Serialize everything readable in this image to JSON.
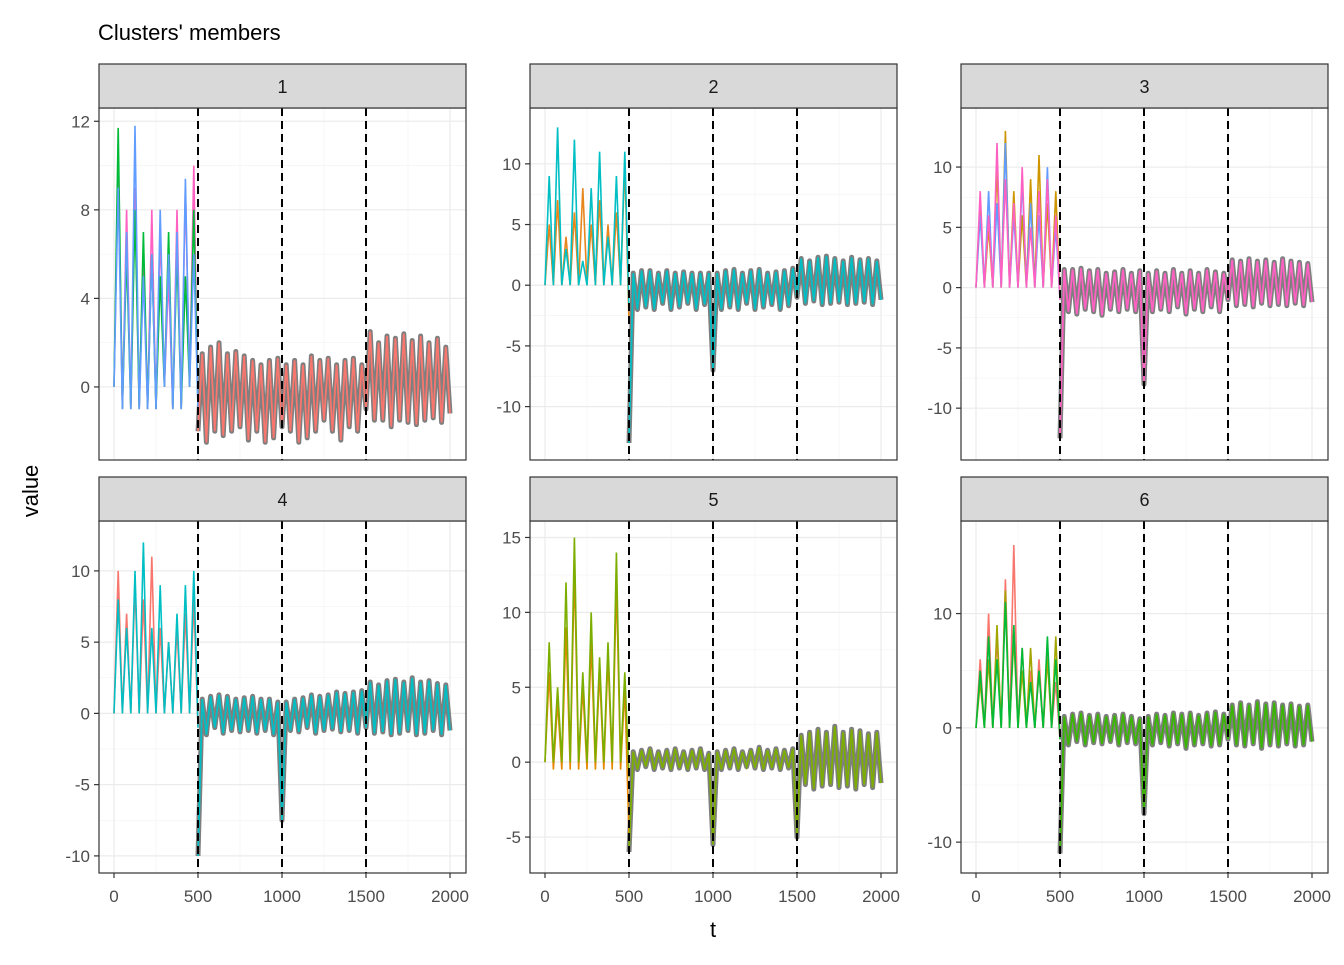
{
  "chart_data": {
    "type": "line",
    "title": "Clusters' members",
    "xlabel": "t",
    "ylabel": "value",
    "xlim": [
      0,
      2000
    ],
    "x_ticks": [
      0,
      500,
      1000,
      1500,
      2000
    ],
    "vlines": [
      500,
      1000,
      1500
    ],
    "grid": true,
    "centroid_color": "#7F7F7F",
    "panels": [
      {
        "label": "1",
        "ylim": [
          -3.3,
          12.6
        ],
        "y_ticks": [
          0,
          4,
          8,
          12
        ],
        "y_tick_labels": [
          "0",
          "4",
          "8",
          "12"
        ],
        "overlay_color": "#F8766D",
        "members": [
          {
            "color": "#FF61C3",
            "t_start": 0,
            "values": [
              0,
              10,
              -1,
              8,
              -1,
              9,
              -1,
              6,
              -1,
              8,
              -1,
              7,
              0,
              5,
              -1,
              8,
              -1,
              9,
              0,
              10,
              -1
            ]
          },
          {
            "color": "#00BA38",
            "t_start": 0,
            "values": [
              0,
              11.7,
              -1,
              6,
              -1,
              8,
              -1,
              7,
              -1,
              6,
              -1,
              5,
              0,
              7,
              -1,
              6,
              -1,
              5,
              0,
              8,
              -1
            ]
          },
          {
            "color": "#619CFF",
            "t_start": 0,
            "values": [
              0,
              9,
              -1,
              7,
              -1,
              11.8,
              -1,
              5,
              -1,
              6,
              -1,
              8,
              0,
              6,
              -1,
              7,
              -1,
              9.4,
              0,
              6,
              -1
            ]
          }
        ],
        "centroid": {
          "t_start": 500,
          "values": [
            -2,
            1.5,
            -2.5,
            1.8,
            -2,
            2,
            -2.2,
            1.5,
            -2,
            1.6,
            -1.8,
            1.4,
            -2.4,
            1.2,
            -2,
            1,
            -2.5,
            1.2,
            -2.3,
            1.3,
            -1.8,
            1,
            -2,
            1.2,
            -2.5,
            1,
            -2.3,
            1.4,
            -2,
            1.2,
            -1.5,
            1.3,
            -2,
            1,
            -2.4,
            1.2,
            -1.8,
            1.3,
            -2,
            1,
            -1,
            2.5,
            -1.5,
            2,
            -1.5,
            2.3,
            -1.8,
            2.2,
            -1.5,
            2.4,
            -1.6,
            2.1,
            -1.7,
            2.3,
            -1.5,
            2,
            -1.4,
            2.2,
            -1.6,
            1.8,
            -1.2
          ]
        }
      },
      {
        "label": "2",
        "ylim": [
          -14.4,
          14.6
        ],
        "y_ticks": [
          -10,
          -5,
          0,
          5,
          10
        ],
        "y_tick_labels": [
          "-10",
          "-5",
          "0",
          "5",
          "10"
        ],
        "overlay_color": "#00BFC4",
        "members": [
          {
            "color": "#E7861B",
            "t_start": 0,
            "values": [
              0,
              5,
              0,
              7,
              0,
              4,
              0,
              6,
              0,
              8,
              0,
              5,
              0,
              7,
              0,
              5,
              0,
              6,
              0,
              10,
              -3
            ]
          },
          {
            "color": "#00BFC4",
            "t_start": 0,
            "values": [
              0,
              9,
              0,
              13,
              0,
              3,
              0,
              12,
              0,
              2,
              0,
              8,
              0,
              11,
              0,
              4,
              0,
              9,
              0,
              11,
              -2
            ]
          }
        ],
        "centroid": {
          "t_start": 500,
          "values": [
            -13,
            1,
            -2,
            1.2,
            -1.8,
            1.2,
            -2,
            1,
            -1.5,
            1.2,
            -2,
            1,
            -1.8,
            1.1,
            -1.5,
            1,
            -2,
            1,
            -1.6,
            1,
            -7,
            1,
            -2,
            1.2,
            -1.8,
            1.3,
            -2,
            1,
            -1.5,
            1.2,
            -2,
            1.3,
            -1.8,
            1,
            -1.6,
            1.1,
            -2,
            1.2,
            -1.7,
            1.4,
            -1,
            2.2,
            -1.5,
            2,
            -1.3,
            2.3,
            -1.6,
            2.4,
            -1.5,
            2.2,
            -1.4,
            2,
            -1.6,
            2.3,
            -1.5,
            2.1,
            -1.4,
            2.2,
            -1.6,
            2,
            -1.2
          ]
        }
      },
      {
        "label": "3",
        "ylim": [
          -14.3,
          14.9
        ],
        "y_ticks": [
          -10,
          -5,
          0,
          5,
          10
        ],
        "y_tick_labels": [
          "-10",
          "-5",
          "0",
          "5",
          "10"
        ],
        "overlay_color": "#FF61C3",
        "members": [
          {
            "color": "#CD9600",
            "t_start": 0,
            "values": [
              0,
              7,
              0,
              5,
              0,
              10,
              0,
              13,
              0,
              8,
              0,
              6,
              0,
              9,
              0,
              11,
              0,
              7,
              0,
              8,
              -1
            ]
          },
          {
            "color": "#619CFF",
            "t_start": 0,
            "values": [
              0,
              6,
              0,
              8,
              0,
              7,
              0,
              12,
              0,
              6,
              0,
              9,
              0,
              7,
              0,
              6,
              0,
              10,
              0,
              5,
              -1
            ]
          },
          {
            "color": "#FF61C3",
            "t_start": 0,
            "values": [
              0,
              8,
              0,
              6,
              0,
              12,
              0,
              9,
              0,
              7,
              0,
              10,
              0,
              5,
              0,
              8,
              0,
              9,
              0,
              6,
              -1
            ]
          }
        ],
        "centroid": {
          "t_start": 500,
          "values": [
            -12.5,
            1.5,
            -2,
            1.5,
            -2.2,
            1.6,
            -1.8,
            1.4,
            -2,
            1.5,
            -2.3,
            1.2,
            -1.8,
            1.3,
            -2,
            1.5,
            -1.8,
            1.2,
            -2,
            1.4,
            -8,
            1.2,
            -2,
            1.4,
            -1.8,
            1.2,
            -2,
            1.5,
            -1.6,
            1.2,
            -2.2,
            1.4,
            -1.8,
            1.2,
            -2,
            1.5,
            -1.6,
            1.3,
            -2,
            1.2,
            -1,
            2.3,
            -1.5,
            2.2,
            -1.4,
            2.4,
            -1.6,
            2.2,
            -1.3,
            2.3,
            -1.5,
            2.1,
            -1.4,
            2.4,
            -1.5,
            2.2,
            -1.3,
            2.1,
            -1.5,
            2,
            -1.2
          ]
        }
      },
      {
        "label": "4",
        "ylim": [
          -11.2,
          13.5
        ],
        "y_ticks": [
          -10,
          -5,
          0,
          5,
          10
        ],
        "y_tick_labels": [
          "-10",
          "-5",
          "0",
          "5",
          "10"
        ],
        "overlay_color": "#00BFC4",
        "members": [
          {
            "color": "#F8766D",
            "t_start": 0,
            "values": [
              0,
              10,
              0,
              7,
              0,
              9,
              0,
              8,
              0,
              11,
              0,
              6,
              0,
              5,
              0,
              6,
              0,
              7,
              0,
              8,
              -1
            ]
          },
          {
            "color": "#00BFC4",
            "t_start": 0,
            "values": [
              0,
              8,
              0,
              6,
              0,
              10,
              0,
              12,
              0,
              6,
              0,
              9,
              0,
              5,
              0,
              7,
              0,
              9,
              0,
              10,
              -1
            ]
          }
        ],
        "centroid": {
          "t_start": 500,
          "values": [
            -10,
            1,
            -1.5,
            1.2,
            -1,
            1.3,
            -1.4,
            1.2,
            -1.2,
            1,
            -1.3,
            1.1,
            -1.2,
            1.2,
            -1.4,
            1,
            -1.2,
            1,
            -1.5,
            0.8,
            -7.5,
            0.8,
            -1.2,
            1,
            -1.3,
            1.1,
            -1,
            1.3,
            -1.4,
            1.2,
            -1.2,
            1.3,
            -1.1,
            1.5,
            -1.3,
            1.4,
            -1.2,
            1.5,
            -1.4,
            1.6,
            -1,
            2.2,
            -1.4,
            2,
            -1.3,
            2.3,
            -1.5,
            2.4,
            -1.4,
            2.2,
            -1.2,
            2.5,
            -1.5,
            2.2,
            -1.4,
            2.3,
            -1.2,
            2.1,
            -1.5,
            2,
            -1.2
          ]
        }
      },
      {
        "label": "5",
        "ylim": [
          -7.4,
          16.1
        ],
        "y_ticks": [
          -5,
          0,
          5,
          10,
          15
        ],
        "y_tick_labels": [
          "-5",
          "0",
          "5",
          "10",
          "15"
        ],
        "overlay_color": "#7CAE00",
        "members": [
          {
            "color": "#E58700",
            "t_start": 0,
            "values": [
              0,
              6,
              -0.5,
              4,
              -0.5,
              9,
              -0.5,
              13,
              -0.5,
              5,
              -0.5,
              8,
              -0.5,
              6,
              -0.5,
              7,
              -0.5,
              12,
              -0.5,
              5,
              -5
            ]
          },
          {
            "color": "#7CAE00",
            "t_start": 0,
            "values": [
              0,
              8,
              0,
              5,
              0,
              12,
              0,
              15,
              0,
              6,
              0,
              10,
              0,
              7,
              0,
              8,
              0,
              14,
              0,
              6,
              -1
            ]
          }
        ],
        "centroid": {
          "t_start": 500,
          "values": [
            -6,
            0.7,
            -0.5,
            0.8,
            -0.3,
            0.9,
            -0.5,
            0.7,
            -0.4,
            0.8,
            -0.5,
            0.9,
            -0.4,
            0.7,
            -0.5,
            0.8,
            -0.4,
            0.9,
            -0.5,
            0.6,
            -5.5,
            0.7,
            -0.5,
            0.8,
            -0.4,
            0.9,
            -0.5,
            0.7,
            -0.3,
            0.8,
            -0.4,
            1,
            -0.5,
            0.8,
            -0.4,
            0.9,
            -0.5,
            0.8,
            -0.4,
            0.9,
            -5,
            1.8,
            -1.5,
            2,
            -1.8,
            2.2,
            -1.6,
            2,
            -1.5,
            2.4,
            -1.7,
            2,
            -1.6,
            2.2,
            -1.8,
            2.1,
            -1.5,
            1.9,
            -1.7,
            2,
            -1.4
          ]
        }
      },
      {
        "label": "6",
        "ylim": [
          -12.7,
          18.1
        ],
        "y_ticks": [
          -10,
          0,
          10
        ],
        "y_tick_labels": [
          "-10",
          "0",
          "10"
        ],
        "overlay_color": "#39B600",
        "members": [
          {
            "color": "#F8766D",
            "t_start": 0,
            "values": [
              0,
              6,
              0,
              10,
              0,
              8,
              0,
              13,
              0,
              16,
              0,
              7,
              0,
              5,
              0,
              6,
              0,
              7,
              0,
              4,
              -1
            ]
          },
          {
            "color": "#A3A500",
            "t_start": 0,
            "values": [
              0,
              4,
              0,
              6,
              0,
              9,
              0,
              12,
              0,
              8,
              0,
              5,
              0,
              7,
              0,
              5,
              0,
              6,
              0,
              8,
              -1
            ]
          },
          {
            "color": "#00BA38",
            "t_start": 0,
            "values": [
              0,
              5,
              0,
              8,
              0,
              6,
              0,
              11,
              0,
              9,
              0,
              7,
              0,
              4,
              0,
              5,
              0,
              8,
              0,
              6,
              -1
            ]
          }
        ],
        "centroid": {
          "t_start": 500,
          "values": [
            -11,
            1,
            -1.5,
            1.2,
            -1.2,
            1.3,
            -1.5,
            1.1,
            -1.3,
            1.2,
            -1.4,
            1,
            -1.2,
            1.1,
            -1.5,
            1.2,
            -1.3,
            1,
            -1.4,
            0.8,
            -7.5,
            1,
            -1.5,
            1.2,
            -1.3,
            1.1,
            -1.6,
            1.3,
            -1.4,
            1.2,
            -1.8,
            1.3,
            -1.5,
            1.1,
            -1.4,
            1.3,
            -1.6,
            1.4,
            -1.5,
            1.2,
            -1,
            2,
            -1.5,
            2.2,
            -1.6,
            2,
            -1.4,
            2.3,
            -1.8,
            2.1,
            -1.5,
            2.2,
            -1.6,
            2,
            -1.4,
            2.1,
            -1.6,
            1.9,
            -1.5,
            2,
            -1.2
          ]
        }
      }
    ]
  }
}
